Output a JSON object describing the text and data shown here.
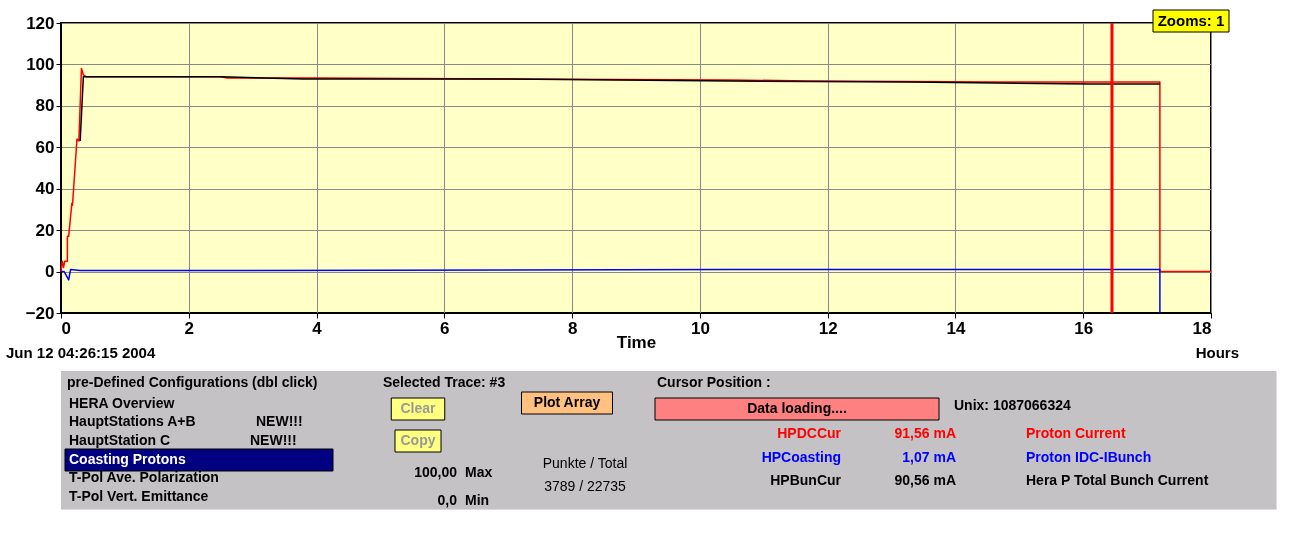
{
  "chart_data": {
    "type": "line",
    "xlabel": "Time",
    "x": [
      0,
      0.02,
      0.04,
      0.06,
      0.1,
      0.1,
      0.12,
      0.17,
      0.18,
      0.25,
      0.28,
      0.32,
      0.35,
      0.4,
      2.5,
      2.6,
      4,
      7,
      10.5,
      11.7,
      14.7,
      16.1,
      17.2,
      17.2,
      18
    ],
    "series": [
      {
        "name": "HPDCCur",
        "color": "#ff0000",
        "values": [
          0,
          5,
          2,
          5,
          5,
          17,
          17,
          33,
          32,
          64,
          63,
          98,
          95,
          94,
          94,
          93.5,
          93.5,
          93,
          92.5,
          92,
          91.5,
          91.5,
          91.5,
          0,
          0
        ]
      },
      {
        "name": "HPCoasting",
        "color": "#0000ff",
        "x": [
          0,
          0.05,
          0.12,
          0.15,
          0.3,
          2,
          10.5,
          17.2,
          17.2
        ],
        "values": [
          0,
          0,
          -4,
          1,
          0.5,
          0.5,
          1,
          1,
          -20
        ]
      },
      {
        "name": "HPBunCur",
        "color": "#000000",
        "x": [
          0.3,
          0.35,
          2.5,
          3.8,
          7,
          10.5,
          13.3,
          16.1,
          17.2
        ],
        "values": [
          63,
          94,
          94,
          93,
          93,
          92,
          91.5,
          90.5,
          90.5
        ]
      }
    ],
    "xlim": [
      0,
      18
    ],
    "xticks": [
      0,
      2,
      4,
      6,
      8,
      10,
      12,
      14,
      16,
      18
    ],
    "ylim": [
      -20,
      120
    ],
    "yticks": [
      -20,
      0,
      20,
      40,
      60,
      80,
      100,
      120
    ],
    "grid": true,
    "legend": false,
    "marker": "none",
    "line_style": "solid",
    "ref_lines": [
      {
        "axis": "x",
        "value": 16.45,
        "color": "#ff0000"
      }
    ],
    "annotations": [
      "Zooms: 1",
      "Jun 12 04:26:15 2004",
      "Hours",
      "pre-Defined Configurations (dbl click)",
      "HERA Overview",
      "HauptStations A+B",
      "NEW!!!",
      "HauptStation C",
      "NEW!!!",
      "Coasting Protons",
      "T-Pol Ave. Polarization",
      "T-Pol Vert. Emittance",
      "Selected Trace: #3",
      "Clear",
      "Copy",
      "100,00",
      "Max",
      "0,0",
      "Min",
      "Plot Array",
      "Punkte / Total",
      "3789 / 22735",
      "Cursor Position :",
      "Data loading....",
      "Unix:  1087066324",
      "91,56 mA",
      "Proton Current",
      "1,07 mA",
      "Proton IDC-IBunch",
      "90,56 mA",
      "Hera P Total Bunch Current"
    ]
  }
}
